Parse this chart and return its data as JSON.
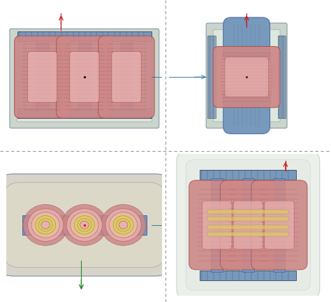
{
  "bg_color": "#ffffff",
  "divider_color": "#999999",
  "axis_red": "#cc2222",
  "axis_green": "#228822",
  "axis_blue": "#226699",
  "tank_face": "#c8d4c8",
  "tank_inner": "#d4dfd4",
  "tank_edge": "#8899aa",
  "core_face": "#7799bb",
  "core_edge": "#4466aa",
  "core_light": "#99bbdd",
  "coil_face": "#cc8888",
  "coil_mid": "#dd9999",
  "coil_light": "#e8b0b0",
  "coil_edge": "#aa5555",
  "yoke_face": "#6688aa",
  "yoke_edge": "#334466",
  "clamp_face": "#7799bb",
  "clamp_edge": "#334466",
  "yellow_detail": "#ddcc66",
  "yellow_edge": "#998800",
  "bg_panel": "#f0f0ee"
}
